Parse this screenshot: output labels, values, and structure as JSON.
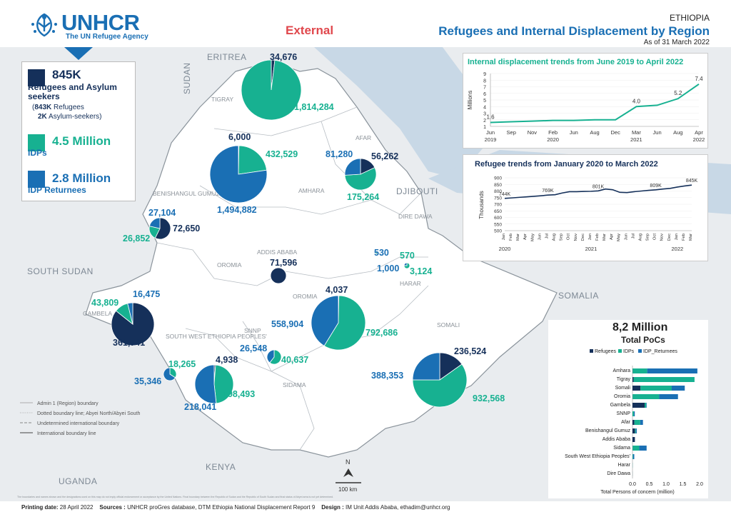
{
  "header": {
    "org_name": "UNHCR",
    "org_tagline": "The UN Refugee Agency",
    "classification": "External",
    "country": "ETHIOPIA",
    "title": "Refugees and Internal Displacement by Region",
    "as_of": "As of 31 March 2022"
  },
  "colors": {
    "refugees": "#15305a",
    "idps": "#17b191",
    "returnees": "#1a6fb4",
    "accent": "#1a6fb4",
    "water": "#c8d8e6",
    "land_out": "#e9ecef",
    "ethiopia": "#ffffff"
  },
  "summary": [
    {
      "value": "845K",
      "label": "Refugees and Asylum seekers",
      "color": "#15305a"
    },
    {
      "value": "4.5 Million",
      "label": "IDPs",
      "color": "#17b191"
    },
    {
      "value": "2.8 Million",
      "label": "IDP Returnees",
      "color": "#1a6fb4"
    }
  ],
  "summary_note": {
    "refugees_bold": "843K",
    "refugees_text": "Refugees",
    "asylum_bold": "2K",
    "asylum_text": "Asylum-seekers"
  },
  "countries": [
    "ERITREA",
    "SUDAN",
    "DJIBOUTI",
    "SOUTH SUDAN",
    "SOMALIA",
    "KENYA",
    "UGANDA"
  ],
  "regions": [
    "TIGRAY",
    "AFAR",
    "AMHARA",
    "BENISHANGUL GUMUZ",
    "DIRE DAWA",
    "ADDIS ABABA",
    "OROMIA",
    "HARAR",
    "GAMBELA",
    "SOUTH WEST ETHIOPIA PEOPLES'",
    "SNNP",
    "SIDAMA",
    "SOMALI",
    "OROMIA"
  ],
  "region_figures": [
    {
      "region": "Tigray",
      "refugees": "34,676",
      "idps": "1,814,284"
    },
    {
      "region": "Afar",
      "refugees": "56,262",
      "idps": "175,264",
      "returnees": "81,280"
    },
    {
      "region": "Amhara",
      "refugees": "6,000",
      "idps": "432,529",
      "returnees": "1,494,882"
    },
    {
      "region": "Benishangul Gumuz",
      "refugees": "72,650",
      "idps": "26,852",
      "returnees": "27,104"
    },
    {
      "region": "Addis Ababa",
      "refugees": "71,596"
    },
    {
      "region": "Dire Dawa",
      "refugees": "530",
      "idps": "570"
    },
    {
      "region": "Harar",
      "returnees": "1,000",
      "idps": "3,124"
    },
    {
      "region": "Gambela",
      "refugees": "361,741",
      "idps": "43,809",
      "returnees": "16,475"
    },
    {
      "region": "Oromia",
      "refugees": "4,037",
      "idps": "792,686",
      "returnees": "558,904"
    },
    {
      "region": "SNNP",
      "returnees": "26,548",
      "idps": "40,637"
    },
    {
      "region": "South West Ethiopia Peoples'",
      "idps": "18,265",
      "returnees": "35,346"
    },
    {
      "region": "Sidama",
      "refugees": "4,938",
      "idps": "198,493",
      "returnees": "218,041"
    },
    {
      "region": "Somali",
      "refugees": "236,524",
      "idps": "932,568",
      "returnees": "388,353"
    }
  ],
  "map_legend": [
    "Admin 1 (Region) boundary",
    "Dotted boundary line; Abyei North/Abyei South",
    "Undetermined international boundary",
    "International boundary line"
  ],
  "scale": "100 km",
  "north": "N",
  "disclaimer": "The boundaries and names shown and the designations used on this map do not imply official endorsement or acceptance by the United Nations. Final boundary between the Republic of Sudan and the Republic of South Sudan and final status of Abyei area is not yet determined.",
  "idp_chart": {
    "title": "Internal displacement trends from June 2019 to April 2022",
    "ylabel": "Millions",
    "chart_data": {
      "type": "line",
      "x_labels": [
        [
          "Jun",
          "2019"
        ],
        [
          "Sep",
          ""
        ],
        [
          "Nov",
          ""
        ],
        [
          "Feb",
          "2020"
        ],
        [
          "Jun",
          ""
        ],
        [
          "Aug",
          ""
        ],
        [
          "Dec",
          ""
        ],
        [
          "Mar",
          "2021"
        ],
        [
          "Jun",
          ""
        ],
        [
          "Aug",
          ""
        ],
        [
          "Apr",
          "2022"
        ]
      ],
      "values": [
        1.6,
        1.7,
        1.8,
        1.9,
        1.9,
        2.0,
        2.0,
        4.0,
        4.2,
        5.2,
        7.4
      ],
      "point_labels": [
        "1.6",
        "",
        "",
        "",
        "",
        "",
        "",
        "4.0",
        "",
        "5.2",
        "7.4"
      ],
      "yticks": [
        "1",
        "2",
        "3",
        "4",
        "5",
        "6",
        "7",
        "8",
        "9"
      ],
      "ylim": [
        1,
        9
      ]
    }
  },
  "ref_chart": {
    "title": "Refugee trends from January 2020 to March 2022",
    "ylabel": "Thousands",
    "chart_data": {
      "type": "line",
      "month_labels": [
        "Jan",
        "Feb",
        "Mar",
        "Apr",
        "May",
        "Jun",
        "Jul",
        "Aug",
        "Sep",
        "Oct",
        "Nov",
        "Dec",
        "Jan",
        "Feb",
        "Mar",
        "Apr",
        "May",
        "Jun",
        "Jul",
        "Aug",
        "Sep",
        "Oct",
        "Nov",
        "Dec",
        "Jan",
        "Feb",
        "Mar"
      ],
      "year_labels": [
        "2020",
        "2021",
        "2022"
      ],
      "values": [
        744,
        748,
        752,
        756,
        760,
        764,
        769,
        772,
        785,
        795,
        795,
        797,
        798,
        801,
        815,
        810,
        790,
        788,
        795,
        800,
        805,
        809,
        815,
        820,
        830,
        838,
        845
      ],
      "point_labels": {
        "0": "744K",
        "6": "769K",
        "13": "801K",
        "21": "809K",
        "26": "845K"
      },
      "yticks": [
        "500",
        "550",
        "600",
        "650",
        "700",
        "750",
        "800",
        "850",
        "900"
      ],
      "ylim": [
        500,
        900
      ]
    }
  },
  "bar_chart": {
    "total_value": "8,2 Million",
    "total_label": "Total PoCs",
    "xlabel": "Total Persons of concern (million)",
    "legend": [
      "Refugees",
      "IDPs",
      "IDP_Returnees"
    ],
    "xticks": [
      "0.0",
      "0.5",
      "1.0",
      "1.5",
      "2.0"
    ],
    "chart_data": {
      "type": "bar",
      "orientation": "horizontal",
      "stacked": true,
      "xlim": [
        0,
        2.0
      ],
      "categories": [
        "Amhara",
        "Tigray",
        "Somali",
        "Oromia",
        "Gambela",
        "SNNP",
        "Afar",
        "Benishangul Gumuz",
        "Addis Ababa",
        "Sidama",
        "South West Ethiopia Peoples'",
        "Harar",
        "Dire Dawa"
      ],
      "series": [
        {
          "name": "Refugees",
          "values": [
            0.006,
            0.035,
            0.237,
            0.004,
            0.362,
            0.0,
            0.056,
            0.073,
            0.072,
            0.005,
            0.0,
            0.0,
            0.001
          ]
        },
        {
          "name": "IDPs",
          "values": [
            0.433,
            1.814,
            0.933,
            0.793,
            0.044,
            0.041,
            0.175,
            0.027,
            0.0,
            0.198,
            0.018,
            0.003,
            0.001
          ]
        },
        {
          "name": "IDP_Returnees",
          "values": [
            1.495,
            0.0,
            0.388,
            0.559,
            0.016,
            0.027,
            0.081,
            0.027,
            0.0,
            0.218,
            0.035,
            0.001,
            0.0
          ]
        }
      ]
    }
  },
  "footer": {
    "printing_label": "Printing date:",
    "printing_date": "28 April 2022",
    "sources_label": "Sources :",
    "sources": "UNHCR proGres database, DTM Ethiopia National Displacement Report 9",
    "design_label": "Design :",
    "design": "IM Unit Addis Ababa, ethadim@unhcr.org"
  }
}
